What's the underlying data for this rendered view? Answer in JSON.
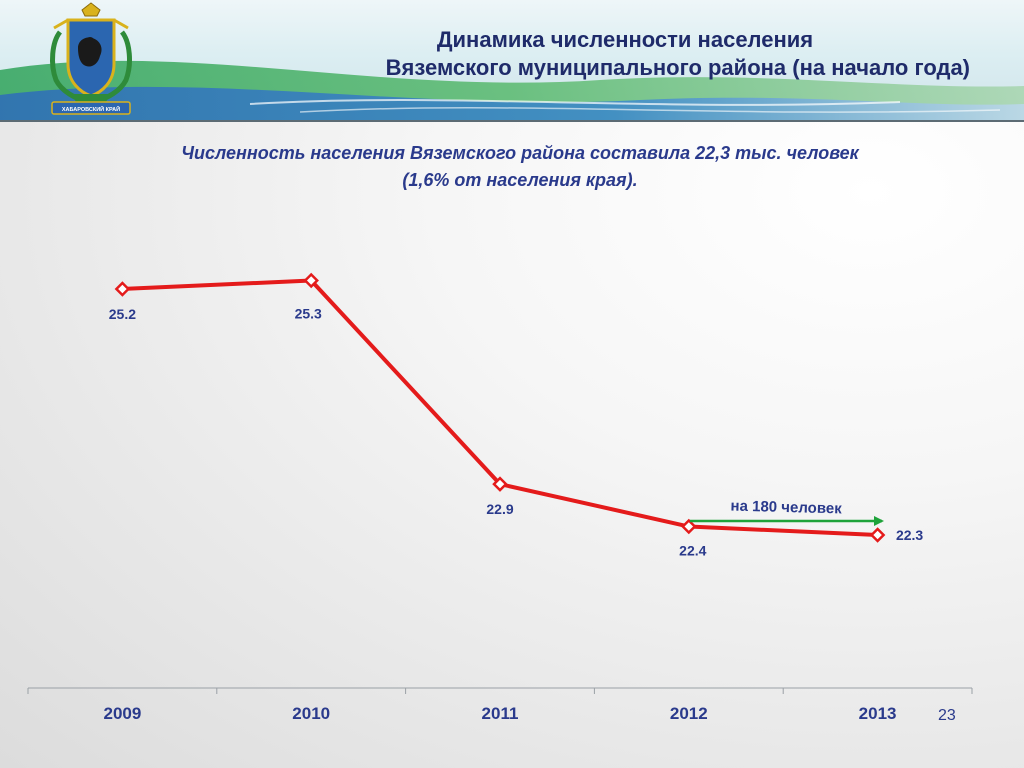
{
  "header": {
    "title_line1": "Динамика численности населения",
    "title_line2": "Вяземского муниципального района (на начало года)",
    "emblem_text": "ХАБАРОВСКИЙ КРАЙ"
  },
  "subtitle": {
    "line1": "Численность населения Вяземского района составила 22,3 тыс. человек",
    "line2": "(1,6% от населения края)."
  },
  "annotation": {
    "text": "на 180 человек",
    "color": "#1fa33a"
  },
  "page_number": "23",
  "colors": {
    "line": "#e41b1b",
    "title": "#1f2b6a",
    "labels": "#2a3a8c"
  },
  "chart_data": {
    "type": "line",
    "categories": [
      "2009",
      "2010",
      "2011",
      "2012",
      "2013"
    ],
    "values": [
      25.2,
      25.3,
      22.9,
      22.4,
      22.3
    ],
    "value_labels": [
      "25.2",
      "25.3",
      "22.9",
      "22.4",
      "22.3"
    ],
    "title": "",
    "xlabel": "",
    "ylabel": "",
    "ylim": [
      20.0,
      26.0
    ],
    "grid": false,
    "legend": "none"
  }
}
